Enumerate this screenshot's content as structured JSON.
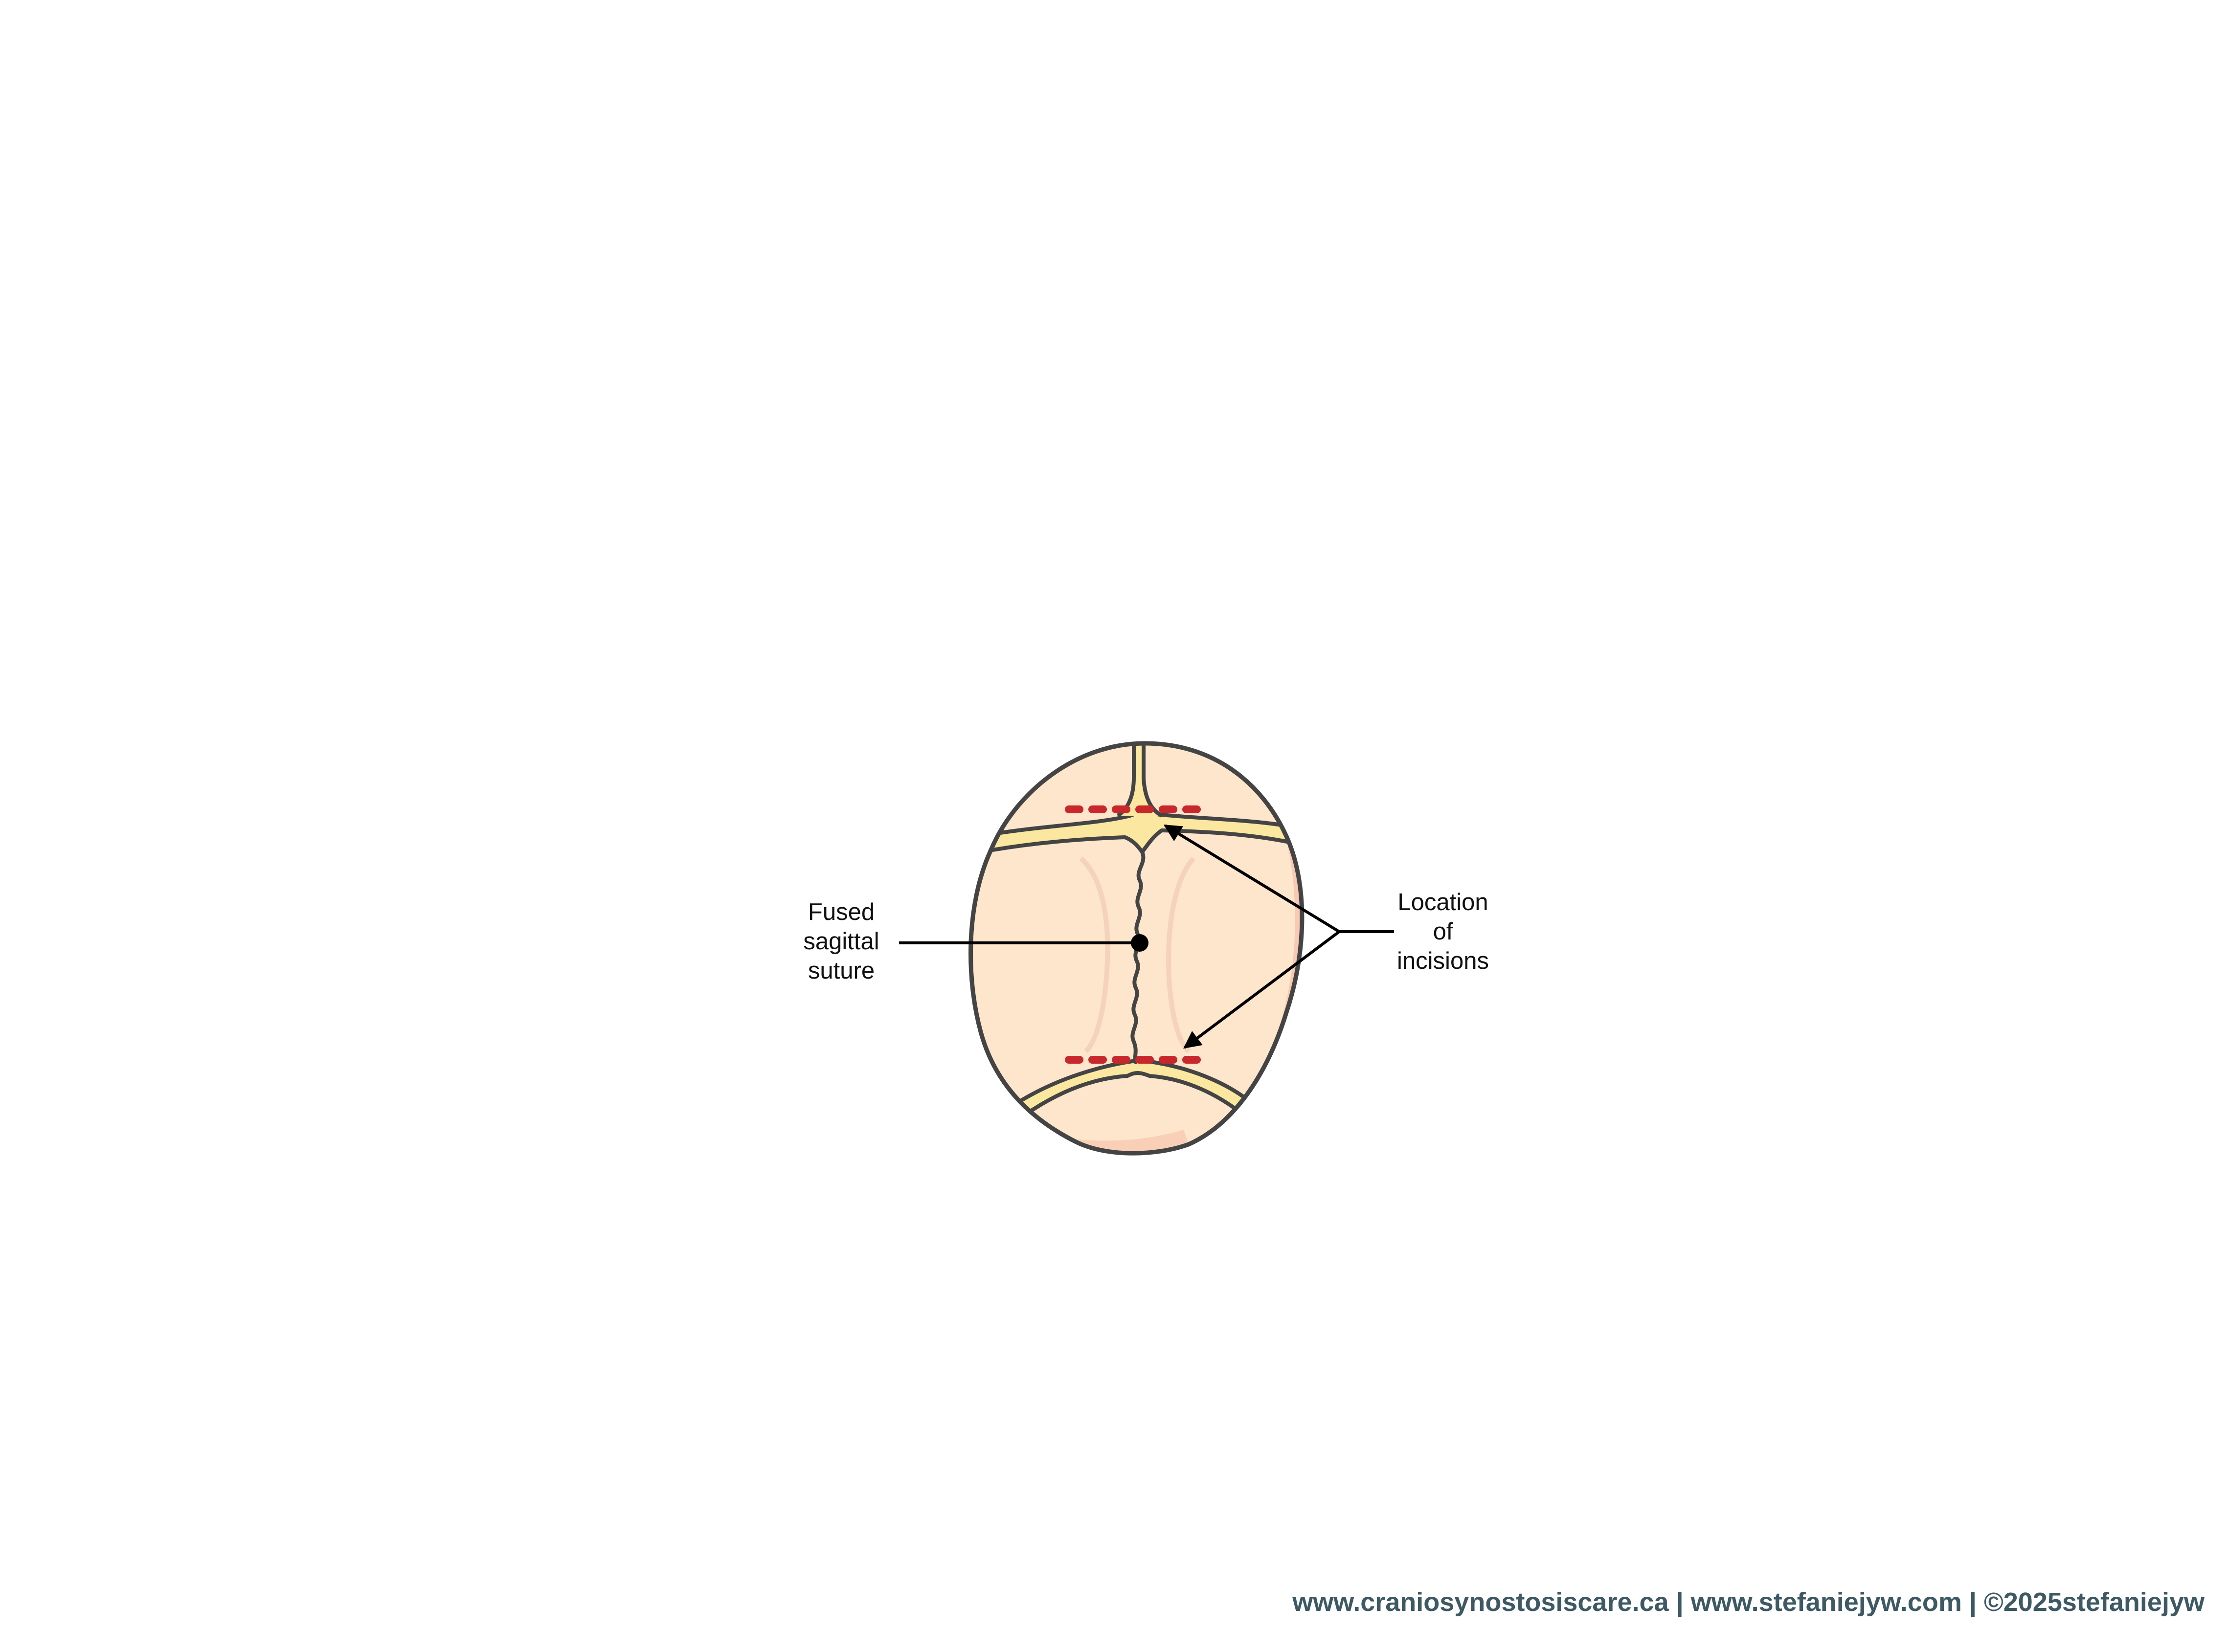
{
  "labels": {
    "fused_sagittal_suture": [
      "Fused",
      "sagittal",
      "suture"
    ],
    "location_of_incisions": [
      "Location",
      "of",
      "incisions"
    ]
  },
  "footer": {
    "credits": "www.craniosynostosiscare.ca | www.stefaniejyw.com | ©2025stefaniejyw"
  },
  "colors": {
    "bone": "#fde6cc",
    "bone_shadow": "#f8c9b3",
    "suture_gap": "#fbe7a0",
    "outline": "#444444",
    "incision": "#c8282c",
    "footer_text": "#3d5964"
  }
}
